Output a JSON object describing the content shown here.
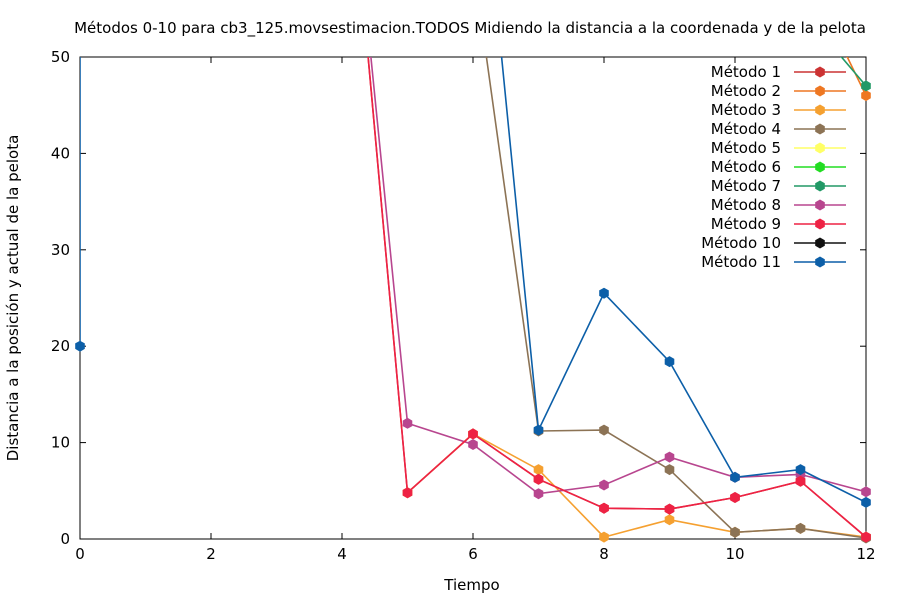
{
  "chart_data": {
    "type": "line",
    "title": "Métodos 0-10 para cb3_125.movsestimacion.TODOS Midiendo la distancia a la coordenada y de la pelota",
    "xlabel": "Tiempo",
    "ylabel": "Distancia a la posición y actual de la pelota",
    "xlim": [
      0,
      12
    ],
    "ylim": [
      0,
      50
    ],
    "xticks": [
      0,
      2,
      4,
      6,
      8,
      10,
      12
    ],
    "yticks": [
      0,
      10,
      20,
      30,
      40,
      50
    ],
    "grid": false,
    "legend_position": "top-right",
    "series": [
      {
        "name": "Método 1",
        "color": "#cc3333",
        "x": [
          0,
          1,
          2,
          3,
          4,
          5,
          6,
          7,
          8,
          9,
          10,
          11,
          12
        ],
        "y": [
          null,
          null,
          null,
          null,
          80,
          4.8,
          10.9,
          6.2,
          3.2,
          3.1,
          4.3,
          6.0,
          0.2
        ]
      },
      {
        "name": "Método 2",
        "color": "#ee7722",
        "x": [
          0,
          1,
          2,
          3,
          4,
          5,
          6,
          7,
          8,
          9,
          10,
          11,
          12
        ],
        "y": [
          null,
          null,
          null,
          null,
          null,
          null,
          null,
          null,
          null,
          null,
          null,
          60,
          46
        ]
      },
      {
        "name": "Método 3",
        "color": "#f5a030",
        "x": [
          5,
          6,
          7,
          8,
          9,
          10,
          11,
          12
        ],
        "y": [
          4.8,
          10.9,
          7.2,
          0.2,
          2.0,
          0.7,
          1.1,
          0.2
        ]
      },
      {
        "name": "Método 4",
        "color": "#8c7355",
        "x": [
          6,
          7,
          8,
          9,
          10,
          11,
          12
        ],
        "y": [
          60,
          11.2,
          11.3,
          7.2,
          0.7,
          1.1,
          0.1
        ]
      },
      {
        "name": "Método 5",
        "color": "#ffff66",
        "x": [],
        "y": []
      },
      {
        "name": "Método 6",
        "color": "#22dd22",
        "x": [],
        "y": []
      },
      {
        "name": "Método 7",
        "color": "#229966",
        "x": [
          11,
          12
        ],
        "y": [
          55,
          47
        ]
      },
      {
        "name": "Método 8",
        "color": "#b8468f",
        "x": [
          4,
          5,
          6,
          7,
          8,
          9,
          10,
          11,
          12
        ],
        "y": [
          80,
          12.0,
          9.8,
          4.7,
          5.6,
          8.5,
          6.4,
          6.7,
          4.9
        ]
      },
      {
        "name": "Método 9",
        "color": "#ee2244",
        "x": [
          4,
          5,
          6,
          7,
          8,
          9,
          10,
          11,
          12
        ],
        "y": [
          80,
          4.8,
          10.9,
          6.2,
          3.2,
          3.1,
          4.3,
          6.0,
          0.2
        ]
      },
      {
        "name": "Método 10",
        "color": "#111111",
        "x": [],
        "y": []
      },
      {
        "name": "Método 11",
        "color": "#0c5fa8",
        "x": [
          0,
          0,
          6,
          7,
          8,
          9,
          10,
          11,
          12
        ],
        "y": [
          20,
          80,
          80,
          11.3,
          25.5,
          18.4,
          6.4,
          7.2,
          3.8
        ]
      }
    ]
  }
}
